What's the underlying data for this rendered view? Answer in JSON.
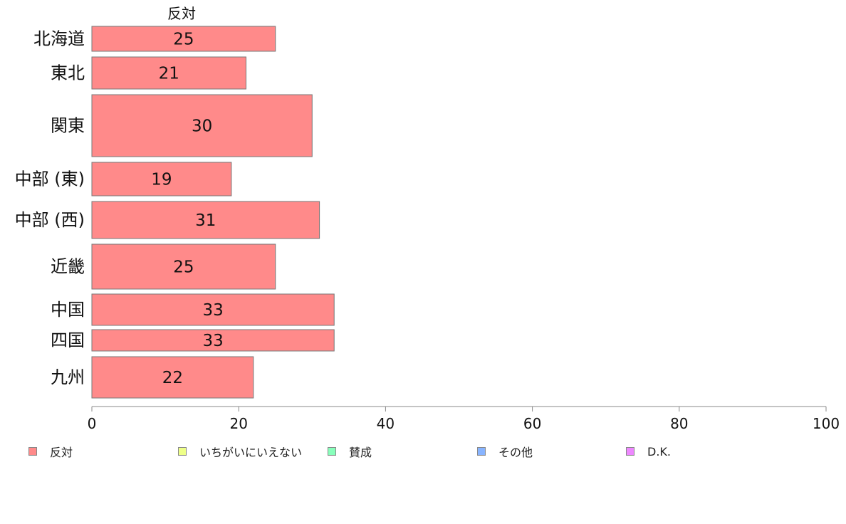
{
  "chart_data": {
    "type": "bar",
    "orientation": "horizontal",
    "series_header": "反対",
    "categories": [
      "北海道",
      "東北",
      "関東",
      "中部 (東)",
      "中部 (西)",
      "近畿",
      "中国",
      "四国",
      "九州"
    ],
    "series": [
      {
        "name": "反対",
        "color": "#ff8a8a",
        "values": [
          25,
          21,
          30,
          19,
          31,
          25,
          33,
          33,
          22
        ]
      }
    ],
    "data_labels": [
      "25",
      "21",
      "30",
      "19",
      "31",
      "25",
      "33",
      "33",
      "22"
    ],
    "xlim": [
      0,
      100
    ],
    "x_ticks": [
      0,
      20,
      40,
      60,
      80,
      100
    ],
    "x_tick_labels": [
      "0",
      "20",
      "40",
      "60",
      "80",
      "100"
    ],
    "legend_position": "bottom",
    "legend": [
      {
        "label": "反対",
        "color": "#ff8a8a"
      },
      {
        "label": "いちがいにいえない",
        "color": "#eeff88"
      },
      {
        "label": "賛成",
        "color": "#88ffbb"
      },
      {
        "label": "その他",
        "color": "#88b4ff"
      },
      {
        "label": "D.K.",
        "color": "#ee88ff"
      }
    ],
    "grid": false
  }
}
